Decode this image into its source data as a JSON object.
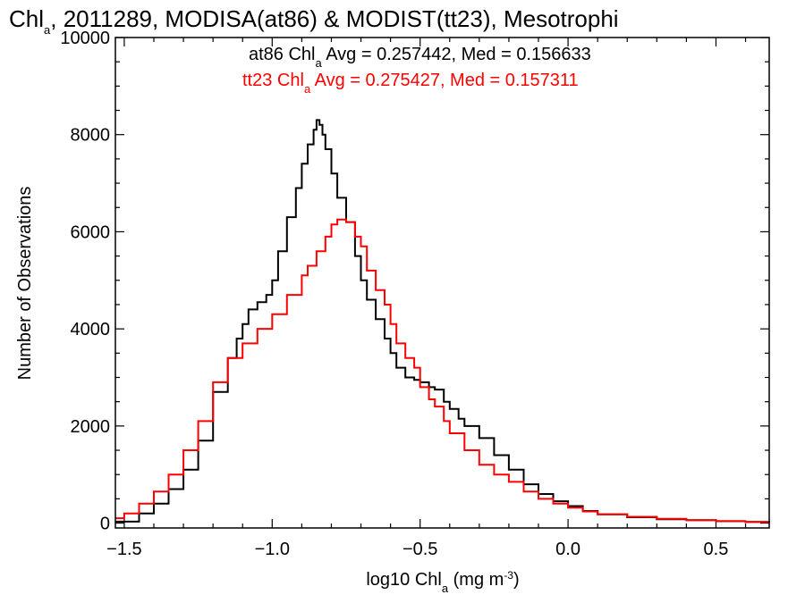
{
  "chart_data": {
    "type": "line",
    "title": {
      "prefix": "Chl",
      "sub": "a",
      "rest": ", 2011289, MODISA(at86) & MODIST(tt23), Mesotrophi"
    },
    "xlabel": {
      "prefix": "log10 Chl",
      "sub": "a",
      "mid": " (mg m",
      "sup": "-3",
      "suffix": ")"
    },
    "ylabel": "Number of Observations",
    "xlim": [
      -1.53,
      0.68
    ],
    "ylim": [
      -100,
      10000
    ],
    "xticks": [
      -1.5,
      -1.0,
      -0.5,
      0.0,
      0.5
    ],
    "xtick_labels": [
      "−1.5",
      "−1.0",
      "−0.5",
      "0.0",
      "0.5"
    ],
    "yticks": [
      0,
      2000,
      4000,
      6000,
      8000,
      10000
    ],
    "ytick_labels": [
      "0",
      "2000",
      "4000",
      "6000",
      "8000",
      "10000"
    ],
    "grid": false,
    "annotations": [
      {
        "prefix": "at86 Chl",
        "sub": "a",
        "rest": " Avg = 0.257442, Med = 0.156633",
        "color": "#000000"
      },
      {
        "prefix": "tt23 Chl",
        "sub": "a",
        "rest": " Avg = 0.275427, Med = 0.157311",
        "color": "#ff0000"
      }
    ],
    "series": [
      {
        "color": "#000000",
        "x": [
          -1.53,
          -1.45,
          -1.4,
          -1.35,
          -1.3,
          -1.25,
          -1.2,
          -1.15,
          -1.12,
          -1.1,
          -1.08,
          -1.05,
          -1.02,
          -1.0,
          -0.98,
          -0.95,
          -0.92,
          -0.9,
          -0.88,
          -0.86,
          -0.85,
          -0.84,
          -0.83,
          -0.82,
          -0.8,
          -0.78,
          -0.75,
          -0.72,
          -0.7,
          -0.68,
          -0.65,
          -0.62,
          -0.6,
          -0.58,
          -0.55,
          -0.52,
          -0.5,
          -0.47,
          -0.45,
          -0.42,
          -0.4,
          -0.37,
          -0.35,
          -0.3,
          -0.25,
          -0.2,
          -0.15,
          -0.1,
          -0.05,
          0.0,
          0.05,
          0.1,
          0.2,
          0.3,
          0.4,
          0.5,
          0.6,
          0.68
        ],
        "y": [
          30,
          200,
          400,
          700,
          1100,
          1700,
          2700,
          3400,
          3800,
          4100,
          4400,
          4550,
          4700,
          5000,
          5600,
          6300,
          6900,
          7400,
          7800,
          8100,
          8300,
          8200,
          8000,
          7700,
          7200,
          6700,
          6200,
          5500,
          5000,
          4600,
          4200,
          3800,
          3500,
          3200,
          3000,
          2950,
          2900,
          2800,
          2750,
          2500,
          2350,
          2150,
          2000,
          1750,
          1400,
          1100,
          800,
          600,
          450,
          350,
          250,
          180,
          120,
          80,
          60,
          40,
          25,
          15
        ]
      },
      {
        "color": "#ff0000",
        "x": [
          -1.53,
          -1.5,
          -1.45,
          -1.4,
          -1.35,
          -1.3,
          -1.25,
          -1.2,
          -1.15,
          -1.1,
          -1.05,
          -1.0,
          -0.95,
          -0.9,
          -0.88,
          -0.85,
          -0.82,
          -0.8,
          -0.78,
          -0.75,
          -0.72,
          -0.7,
          -0.68,
          -0.65,
          -0.62,
          -0.6,
          -0.58,
          -0.55,
          -0.52,
          -0.5,
          -0.47,
          -0.45,
          -0.42,
          -0.4,
          -0.35,
          -0.3,
          -0.25,
          -0.2,
          -0.15,
          -0.1,
          -0.05,
          0.0,
          0.05,
          0.1,
          0.2,
          0.3,
          0.4,
          0.5,
          0.6,
          0.68
        ],
        "y": [
          100,
          200,
          400,
          650,
          1000,
          1500,
          2100,
          2900,
          3400,
          3700,
          4000,
          4300,
          4700,
          5100,
          5300,
          5600,
          5900,
          6150,
          6250,
          6200,
          5900,
          5700,
          5200,
          4800,
          4500,
          4100,
          3700,
          3400,
          3200,
          2800,
          2550,
          2400,
          2100,
          1850,
          1500,
          1200,
          1000,
          850,
          650,
          500,
          400,
          320,
          240,
          180,
          130,
          90,
          60,
          40,
          25,
          15
        ]
      }
    ]
  }
}
